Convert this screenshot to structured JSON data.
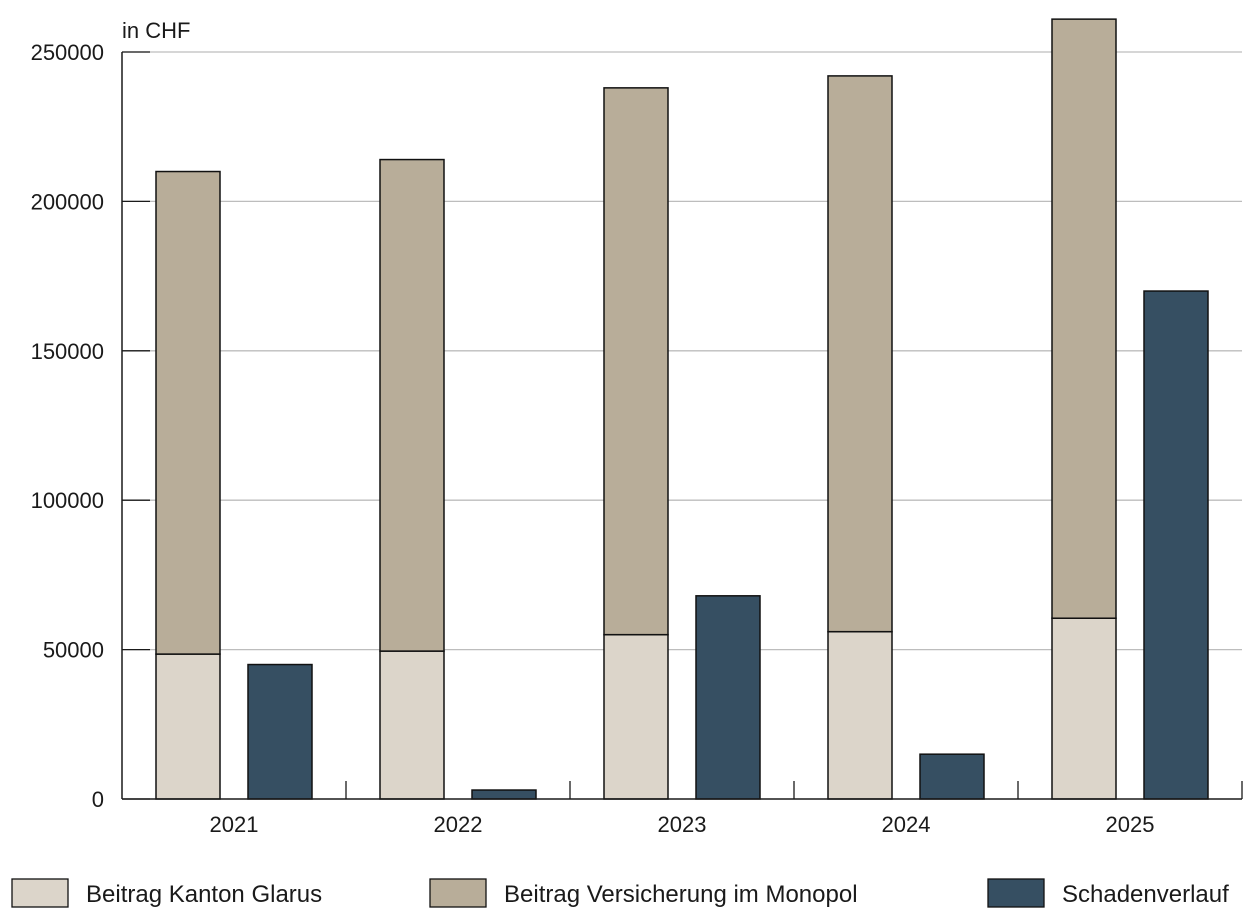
{
  "chart_data": {
    "type": "bar",
    "stacked_and_grouped": true,
    "categories": [
      "2021",
      "2022",
      "2023",
      "2024",
      "2025"
    ],
    "unit_label": "in CHF",
    "ylim": [
      0,
      250000
    ],
    "yticks": [
      0,
      50000,
      100000,
      150000,
      200000,
      250000
    ],
    "ytick_labels": [
      "0",
      "50000",
      "100000",
      "150000",
      "200000",
      "250000"
    ],
    "grid": true,
    "legend_position": "bottom",
    "series": [
      {
        "name": "Beitrag Kanton Glarus",
        "stack": "beitrag",
        "color": "#dcd5ca",
        "values": [
          48500,
          49500,
          55000,
          56000,
          60500
        ]
      },
      {
        "name": "Beitrag Versicherung im Monopol",
        "stack": "beitrag",
        "color": "#b8ad99",
        "values": [
          161500,
          164500,
          183000,
          186000,
          200500
        ]
      },
      {
        "name": "Schadenverlauf",
        "stack": "schaden",
        "color": "#364f62",
        "values": [
          45000,
          3000,
          68000,
          15000,
          170000
        ]
      }
    ]
  }
}
